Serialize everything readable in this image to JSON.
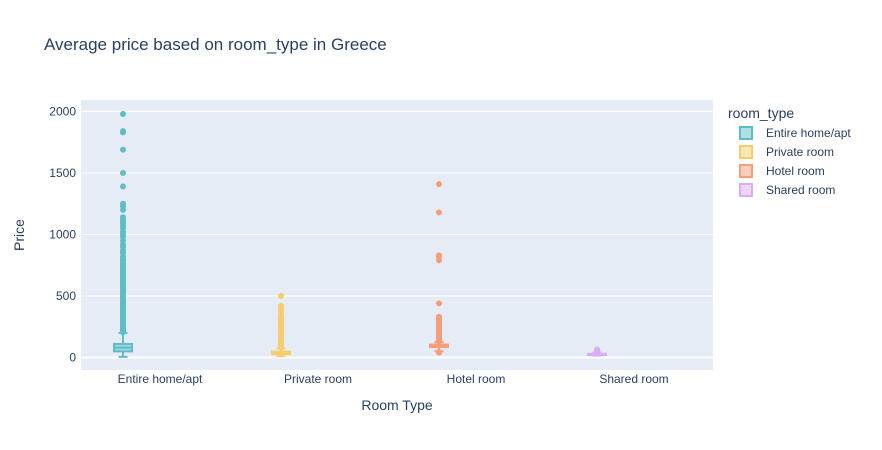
{
  "chart_data": {
    "type": "box",
    "title": "Average price based on room_type in Greece",
    "xlabel": "Room Type",
    "ylabel": "Price",
    "ylim": [
      -100,
      2080
    ],
    "yticks": [
      0,
      500,
      1000,
      1500,
      2000
    ],
    "grid": true,
    "legend_title": "room_type",
    "legend_position": "right",
    "series": [
      {
        "name": "Entire home/apt",
        "category": "Entire home/apt",
        "color": "#5fbdc8",
        "lower_fence": 5,
        "q1": 50,
        "median": 80,
        "q3": 110,
        "upper_fence": 200,
        "outliers": [
          205,
          210,
          220,
          230,
          240,
          250,
          260,
          270,
          280,
          290,
          300,
          310,
          320,
          330,
          340,
          350,
          360,
          370,
          380,
          390,
          400,
          410,
          420,
          430,
          440,
          450,
          460,
          470,
          480,
          490,
          500,
          510,
          520,
          530,
          540,
          550,
          560,
          570,
          580,
          590,
          600,
          610,
          620,
          630,
          640,
          650,
          660,
          670,
          680,
          690,
          700,
          710,
          720,
          730,
          740,
          750,
          760,
          770,
          790,
          800,
          820,
          850,
          870,
          900,
          920,
          950,
          980,
          1000,
          1020,
          1050,
          1070,
          1090,
          1100,
          1120,
          1140,
          1200,
          1230,
          1250,
          1390,
          1500,
          1690,
          1830,
          1840,
          1980
        ]
      },
      {
        "name": "Private room",
        "category": "Private room",
        "color": "#f7cd6d",
        "lower_fence": 10,
        "q1": 28,
        "median": 38,
        "q3": 48,
        "upper_fence": 75,
        "outliers": [
          80,
          90,
          100,
          110,
          120,
          130,
          140,
          150,
          160,
          170,
          180,
          190,
          200,
          210,
          220,
          230,
          240,
          250,
          260,
          270,
          280,
          290,
          300,
          310,
          320,
          340,
          350,
          380,
          400,
          420,
          500
        ]
      },
      {
        "name": "Hotel room",
        "category": "Hotel room",
        "color": "#f69e7a",
        "lower_fence": 50,
        "q1": 85,
        "median": 95,
        "q3": 105,
        "upper_fence": 125,
        "outliers": [
          40,
          45,
          130,
          140,
          150,
          160,
          170,
          180,
          190,
          200,
          210,
          220,
          230,
          240,
          250,
          260,
          270,
          280,
          290,
          300,
          310,
          320,
          330,
          440,
          790,
          820,
          830,
          1180,
          1410
        ]
      },
      {
        "name": "Shared room",
        "category": "Shared room",
        "color": "#d9aef7",
        "lower_fence": 15,
        "q1": 20,
        "median": 25,
        "q3": 30,
        "upper_fence": 40,
        "outliers": [
          45,
          50,
          55,
          60,
          65
        ]
      }
    ]
  }
}
